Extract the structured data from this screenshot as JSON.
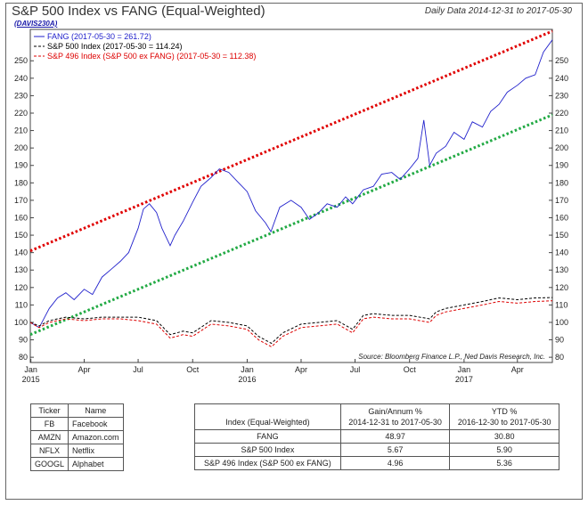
{
  "header": {
    "title": "S&P 500 Index vs FANG (Equal-Weighted)",
    "code": "(DAVIS230A)",
    "date_range": "Daily Data 2014-12-31 to 2017-05-30"
  },
  "chart_data": {
    "type": "line",
    "yticks": [
      80,
      90,
      100,
      110,
      120,
      130,
      140,
      150,
      160,
      170,
      180,
      190,
      200,
      210,
      220,
      230,
      240,
      250
    ],
    "ylim": [
      77,
      268
    ],
    "xlim": [
      "2014-12-31",
      "2017-05-30"
    ],
    "x_ticks": [
      {
        "label": "Jan",
        "year": "2015",
        "date": "2015-01-01"
      },
      {
        "label": "Apr",
        "year": "",
        "date": "2015-04-01"
      },
      {
        "label": "Jul",
        "year": "",
        "date": "2015-07-01"
      },
      {
        "label": "Oct",
        "year": "",
        "date": "2015-10-01"
      },
      {
        "label": "Jan",
        "year": "2016",
        "date": "2016-01-01"
      },
      {
        "label": "Apr",
        "year": "",
        "date": "2016-04-01"
      },
      {
        "label": "Jul",
        "year": "",
        "date": "2016-07-01"
      },
      {
        "label": "Oct",
        "year": "",
        "date": "2016-10-01"
      },
      {
        "label": "Jan",
        "year": "2017",
        "date": "2017-01-01"
      },
      {
        "label": "Apr",
        "year": "",
        "date": "2017-04-01"
      }
    ],
    "legend": [
      {
        "label": "FANG (2017-05-30 = 261.72)",
        "color": "#2222cc",
        "style": "solid"
      },
      {
        "label": "S&P 500 Index (2017-05-30 = 114.24)",
        "color": "#000000",
        "style": "dashed"
      },
      {
        "label": "S&P 496 Index (S&P 500 ex FANG) (2017-05-30 = 112.38)",
        "color": "#dd0000",
        "style": "dashed"
      }
    ],
    "source": "Source:  Bloomberg Finance L.P., Ned Davis Research, Inc.",
    "series": [
      {
        "name": "FANG",
        "color": "#2222cc",
        "x": [
          "2014-12-31",
          "2015-01-15",
          "2015-02-01",
          "2015-02-15",
          "2015-03-01",
          "2015-03-15",
          "2015-04-01",
          "2015-04-15",
          "2015-05-01",
          "2015-05-15",
          "2015-06-01",
          "2015-06-15",
          "2015-07-01",
          "2015-07-10",
          "2015-07-20",
          "2015-08-01",
          "2015-08-10",
          "2015-08-24",
          "2015-09-01",
          "2015-09-15",
          "2015-10-01",
          "2015-10-15",
          "2015-11-01",
          "2015-11-15",
          "2015-12-01",
          "2015-12-15",
          "2016-01-01",
          "2016-01-15",
          "2016-02-01",
          "2016-02-10",
          "2016-02-25",
          "2016-03-15",
          "2016-04-01",
          "2016-04-15",
          "2016-05-01",
          "2016-05-15",
          "2016-06-01",
          "2016-06-15",
          "2016-06-27",
          "2016-07-15",
          "2016-08-01",
          "2016-08-15",
          "2016-09-01",
          "2016-09-15",
          "2016-10-01",
          "2016-10-15",
          "2016-10-25",
          "2016-11-04",
          "2016-11-15",
          "2016-12-01",
          "2016-12-15",
          "2017-01-01",
          "2017-01-15",
          "2017-02-01",
          "2017-02-15",
          "2017-03-01",
          "2017-03-15",
          "2017-04-01",
          "2017-04-15",
          "2017-05-01",
          "2017-05-15",
          "2017-05-30"
        ],
        "values": [
          100,
          97,
          108,
          114,
          117,
          113,
          119,
          116,
          126,
          130,
          135,
          140,
          154,
          165,
          168,
          163,
          154,
          144,
          150,
          158,
          169,
          178,
          183,
          188,
          186,
          181,
          175,
          164,
          157,
          152,
          166,
          170,
          166,
          159,
          163,
          168,
          166,
          172,
          168,
          176,
          178,
          185,
          186,
          182,
          188,
          194,
          216,
          190,
          197,
          201,
          209,
          205,
          215,
          212,
          221,
          225,
          232,
          236,
          240,
          242,
          255,
          262
        ]
      },
      {
        "name": "S&P 500 Index",
        "color": "#000000",
        "x": [
          "2014-12-31",
          "2015-01-15",
          "2015-02-01",
          "2015-03-01",
          "2015-04-01",
          "2015-05-01",
          "2015-06-01",
          "2015-07-01",
          "2015-08-01",
          "2015-08-24",
          "2015-09-15",
          "2015-10-01",
          "2015-11-01",
          "2015-12-01",
          "2016-01-01",
          "2016-01-20",
          "2016-02-11",
          "2016-03-01",
          "2016-04-01",
          "2016-05-01",
          "2016-06-01",
          "2016-06-27",
          "2016-07-15",
          "2016-08-01",
          "2016-09-01",
          "2016-10-01",
          "2016-11-04",
          "2016-11-15",
          "2016-12-01",
          "2017-01-01",
          "2017-02-01",
          "2017-03-01",
          "2017-04-01",
          "2017-05-01",
          "2017-05-30"
        ],
        "values": [
          100,
          98,
          101,
          103,
          102,
          103,
          103,
          103,
          101,
          93,
          95,
          94,
          101,
          100,
          98,
          92,
          88,
          94,
          99,
          100,
          101,
          96,
          104,
          105,
          104,
          104,
          102,
          106,
          108,
          110,
          112,
          114,
          113,
          114,
          114.24
        ]
      },
      {
        "name": "S&P 496 Index (S&P 500 ex FANG)",
        "color": "#dd0000",
        "x": [
          "2014-12-31",
          "2015-01-15",
          "2015-02-01",
          "2015-03-01",
          "2015-04-01",
          "2015-05-01",
          "2015-06-01",
          "2015-07-01",
          "2015-08-01",
          "2015-08-24",
          "2015-09-15",
          "2015-10-01",
          "2015-11-01",
          "2015-12-01",
          "2016-01-01",
          "2016-01-20",
          "2016-02-11",
          "2016-03-01",
          "2016-04-01",
          "2016-05-01",
          "2016-06-01",
          "2016-06-27",
          "2016-07-15",
          "2016-08-01",
          "2016-09-01",
          "2016-10-01",
          "2016-11-04",
          "2016-11-15",
          "2016-12-01",
          "2017-01-01",
          "2017-02-01",
          "2017-03-01",
          "2017-04-01",
          "2017-05-01",
          "2017-05-30"
        ],
        "values": [
          100,
          97,
          100,
          102,
          101,
          102,
          102,
          101,
          99,
          91,
          93,
          92,
          99,
          98,
          96,
          90,
          86,
          92,
          97,
          98,
          99,
          94,
          102,
          103,
          102,
          102,
          100,
          104,
          106,
          108,
          110,
          112,
          111,
          112,
          112.38
        ]
      }
    ],
    "trend_lines": [
      {
        "name": "upper-channel",
        "color": "#e00000",
        "x": [
          "2014-12-31",
          "2017-05-30"
        ],
        "values": [
          141,
          267
        ]
      },
      {
        "name": "lower-channel",
        "color": "#22aa44",
        "x": [
          "2014-12-31",
          "2017-05-30"
        ],
        "values": [
          93,
          219
        ]
      }
    ]
  },
  "ticker_table": {
    "headers": [
      "Ticker",
      "Name"
    ],
    "rows": [
      [
        "FB",
        "Facebook"
      ],
      [
        "AMZN",
        "Amazon.com"
      ],
      [
        "NFLX",
        "Netflix"
      ],
      [
        "GOOGL",
        "Alphabet"
      ]
    ]
  },
  "performance_table": {
    "headers": [
      {
        "line1": "",
        "line2": "Index (Equal-Weighted)"
      },
      {
        "line1": "Gain/Annum %",
        "line2": "2014-12-31 to 2017-05-30"
      },
      {
        "line1": "YTD %",
        "line2": "2016-12-30 to 2017-05-30"
      }
    ],
    "rows": [
      [
        "FANG",
        "48.97",
        "30.80"
      ],
      [
        "S&P 500 Index",
        "5.67",
        "5.90"
      ],
      [
        "S&P 496 Index (S&P 500 ex FANG)",
        "4.96",
        "5.36"
      ]
    ]
  }
}
